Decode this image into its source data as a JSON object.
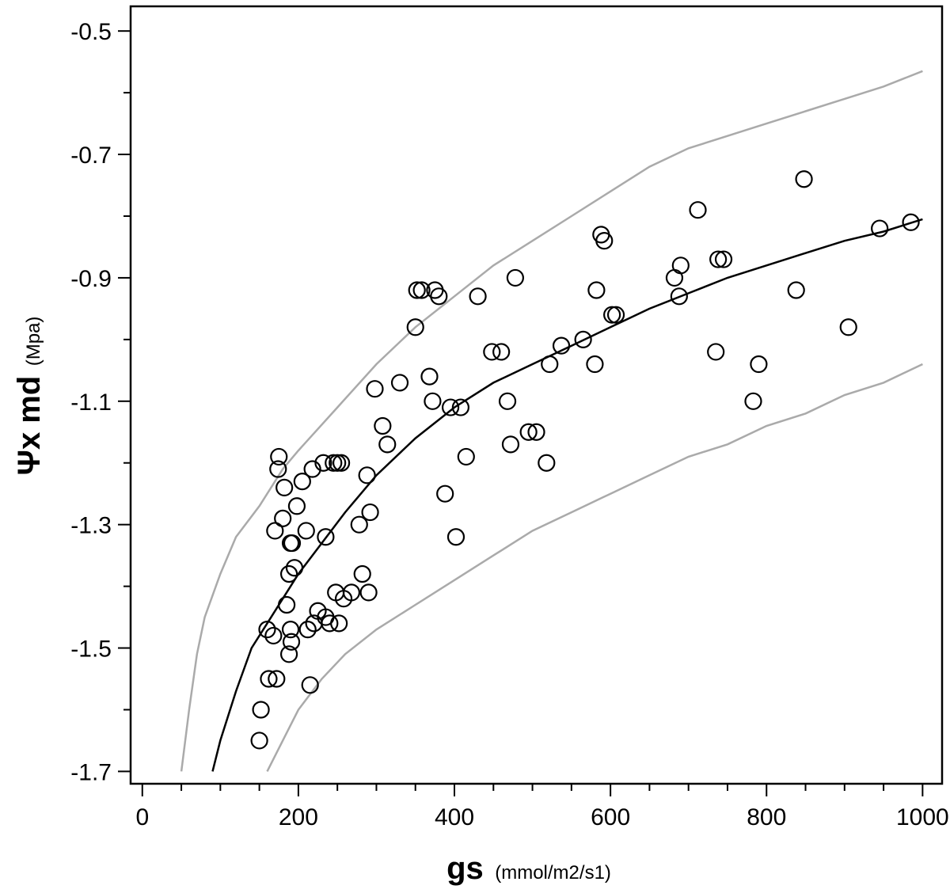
{
  "chart_data": {
    "type": "scatter",
    "title": "",
    "xlabel": {
      "main": "gs",
      "unit": "(mmol/m2/s1)"
    },
    "ylabel": {
      "main": "Ψx md",
      "unit": "(Mpa)"
    },
    "xlim": [
      -15,
      1025
    ],
    "ylim": [
      -1.72,
      -0.46
    ],
    "x_ticks": [
      0,
      200,
      400,
      600,
      800,
      1000
    ],
    "x_tick_labels": [
      "0",
      "200",
      "400",
      "600",
      "800",
      "1000"
    ],
    "x_minor_step": 50,
    "y_ticks": [
      -0.5,
      -0.7,
      -0.9,
      -1.1,
      -1.3,
      -1.5,
      -1.7
    ],
    "y_tick_labels": [
      "-0.5",
      "-0.7",
      "-0.9",
      "-1.1",
      "-1.3",
      "-1.5",
      "-1.7"
    ],
    "y_minor_step": 0.1,
    "grid": false,
    "legend": "none",
    "colors": {
      "points": "#000000",
      "fit": "#000000",
      "bounds": "#aaaaaa"
    },
    "fit_curve": {
      "x": [
        90,
        100,
        120,
        140,
        160,
        180,
        200,
        230,
        260,
        300,
        350,
        400,
        450,
        500,
        550,
        600,
        650,
        700,
        750,
        800,
        850,
        900,
        950,
        1000
      ],
      "y": [
        -1.7,
        -1.65,
        -1.57,
        -1.5,
        -1.46,
        -1.42,
        -1.38,
        -1.33,
        -1.28,
        -1.22,
        -1.16,
        -1.11,
        -1.07,
        -1.04,
        -1.01,
        -0.98,
        -0.95,
        -0.925,
        -0.9,
        -0.88,
        -0.86,
        -0.84,
        -0.825,
        -0.805
      ]
    },
    "upper_bound": {
      "x": [
        50,
        60,
        70,
        80,
        100,
        120,
        150,
        180,
        200,
        250,
        300,
        350,
        400,
        450,
        500,
        550,
        600,
        650,
        700,
        750,
        800,
        850,
        900,
        950,
        1000
      ],
      "y": [
        -1.7,
        -1.6,
        -1.51,
        -1.45,
        -1.38,
        -1.32,
        -1.27,
        -1.21,
        -1.18,
        -1.11,
        -1.04,
        -0.98,
        -0.93,
        -0.88,
        -0.84,
        -0.8,
        -0.76,
        -0.72,
        -0.69,
        -0.67,
        -0.65,
        -0.63,
        -0.61,
        -0.59,
        -0.565
      ]
    },
    "lower_bound": {
      "x": [
        160,
        180,
        200,
        230,
        260,
        300,
        350,
        400,
        450,
        500,
        550,
        600,
        650,
        700,
        750,
        800,
        850,
        900,
        950,
        1000
      ],
      "y": [
        -1.7,
        -1.65,
        -1.6,
        -1.55,
        -1.51,
        -1.47,
        -1.43,
        -1.39,
        -1.35,
        -1.31,
        -1.28,
        -1.25,
        -1.22,
        -1.19,
        -1.17,
        -1.14,
        -1.12,
        -1.09,
        -1.07,
        -1.04
      ]
    },
    "series": [
      {
        "x": [
          150,
          152,
          160,
          162,
          168,
          170,
          172,
          174,
          175,
          180,
          182,
          185,
          188,
          188,
          190,
          190,
          191,
          192,
          195,
          198,
          205,
          210,
          212,
          215,
          218,
          220,
          225,
          232,
          235,
          235,
          240,
          245,
          248,
          250,
          252,
          255,
          258,
          268,
          278,
          282,
          288,
          290,
          292,
          298,
          308,
          314,
          330,
          350,
          352,
          358,
          368,
          372,
          375,
          380,
          388,
          395,
          402,
          408,
          415,
          430,
          448,
          460,
          468,
          472,
          478,
          495,
          505,
          518,
          522,
          537,
          565,
          580,
          582,
          588,
          592,
          602,
          607,
          682,
          688,
          690,
          712,
          735,
          738,
          745,
          783,
          790,
          838,
          848,
          905,
          945,
          985
        ],
        "y": [
          -1.65,
          -1.6,
          -1.47,
          -1.55,
          -1.48,
          -1.31,
          -1.55,
          -1.21,
          -1.19,
          -1.29,
          -1.24,
          -1.43,
          -1.51,
          -1.38,
          -1.33,
          -1.47,
          -1.49,
          -1.33,
          -1.37,
          -1.27,
          -1.23,
          -1.31,
          -1.47,
          -1.56,
          -1.21,
          -1.46,
          -1.44,
          -1.2,
          -1.45,
          -1.32,
          -1.46,
          -1.2,
          -1.41,
          -1.2,
          -1.46,
          -1.2,
          -1.42,
          -1.41,
          -1.3,
          -1.38,
          -1.22,
          -1.41,
          -1.28,
          -1.08,
          -1.14,
          -1.17,
          -1.07,
          -0.98,
          -0.92,
          -0.92,
          -1.06,
          -1.1,
          -0.92,
          -0.93,
          -1.25,
          -1.11,
          -1.32,
          -1.11,
          -1.19,
          -0.93,
          -1.02,
          -1.02,
          -1.1,
          -1.17,
          -0.9,
          -1.15,
          -1.15,
          -1.2,
          -1.04,
          -1.01,
          -1.0,
          -1.04,
          -0.92,
          -0.83,
          -0.84,
          -0.96,
          -0.96,
          -0.9,
          -0.93,
          -0.88,
          -0.79,
          -1.02,
          -0.87,
          -0.87,
          -1.1,
          -1.04,
          -0.92,
          -0.74,
          -0.98,
          -0.82,
          -0.81
        ]
      }
    ]
  }
}
